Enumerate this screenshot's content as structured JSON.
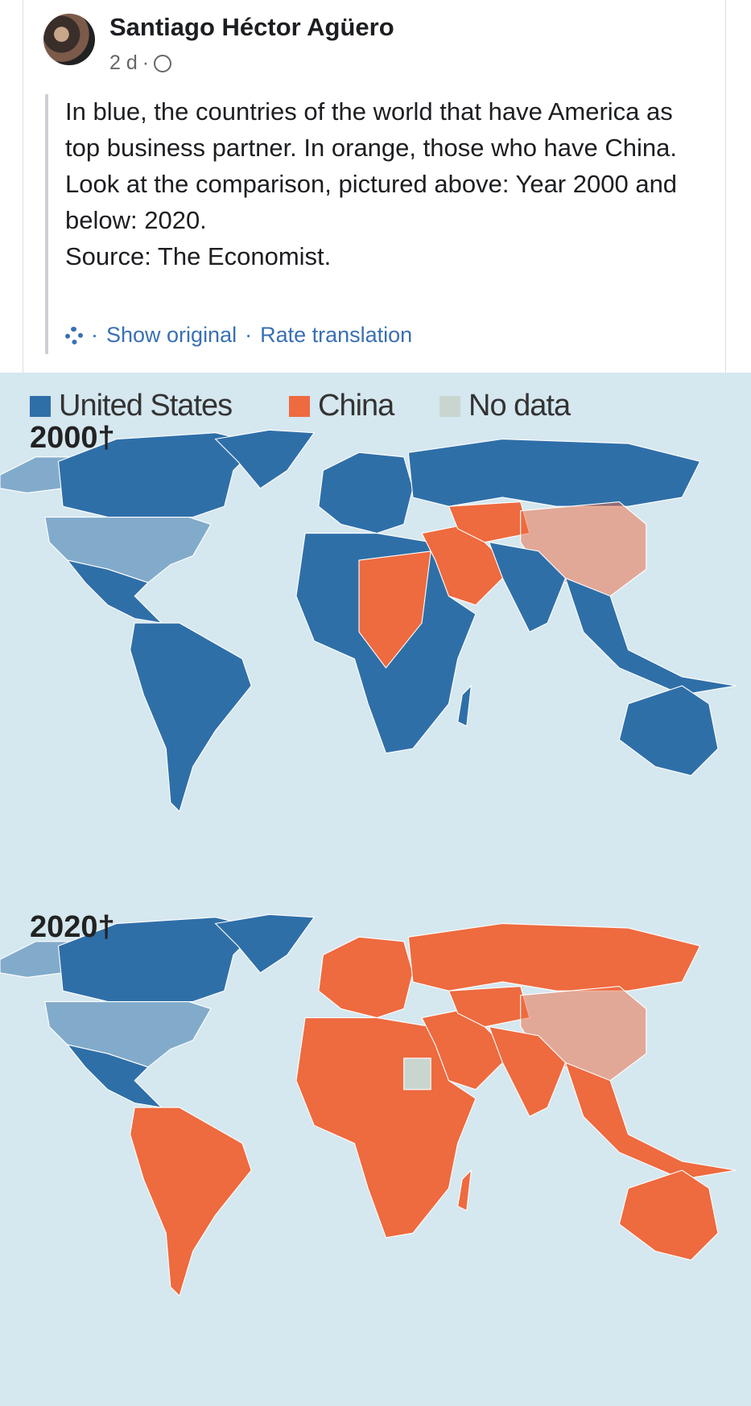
{
  "post": {
    "author": "Santiago Héctor Agüero",
    "time": "2 d",
    "paragraphs": [
      "In blue, the countries of the world that have America as top business partner. In orange, those who have China.",
      "Look at the comparison, pictured above: Year 2000 and below: 2020.",
      "Source: The Economist."
    ],
    "actions": [
      "Show original",
      "Rate translation"
    ]
  },
  "map": {
    "legend": [
      {
        "label": "United States",
        "color": "#2f6fa8"
      },
      {
        "label": "China",
        "color": "#ee6a3f"
      },
      {
        "label": "No data",
        "color": "#c9d6cf"
      }
    ],
    "panels": [
      {
        "label": "2000†"
      },
      {
        "label": "2020†"
      }
    ]
  }
}
